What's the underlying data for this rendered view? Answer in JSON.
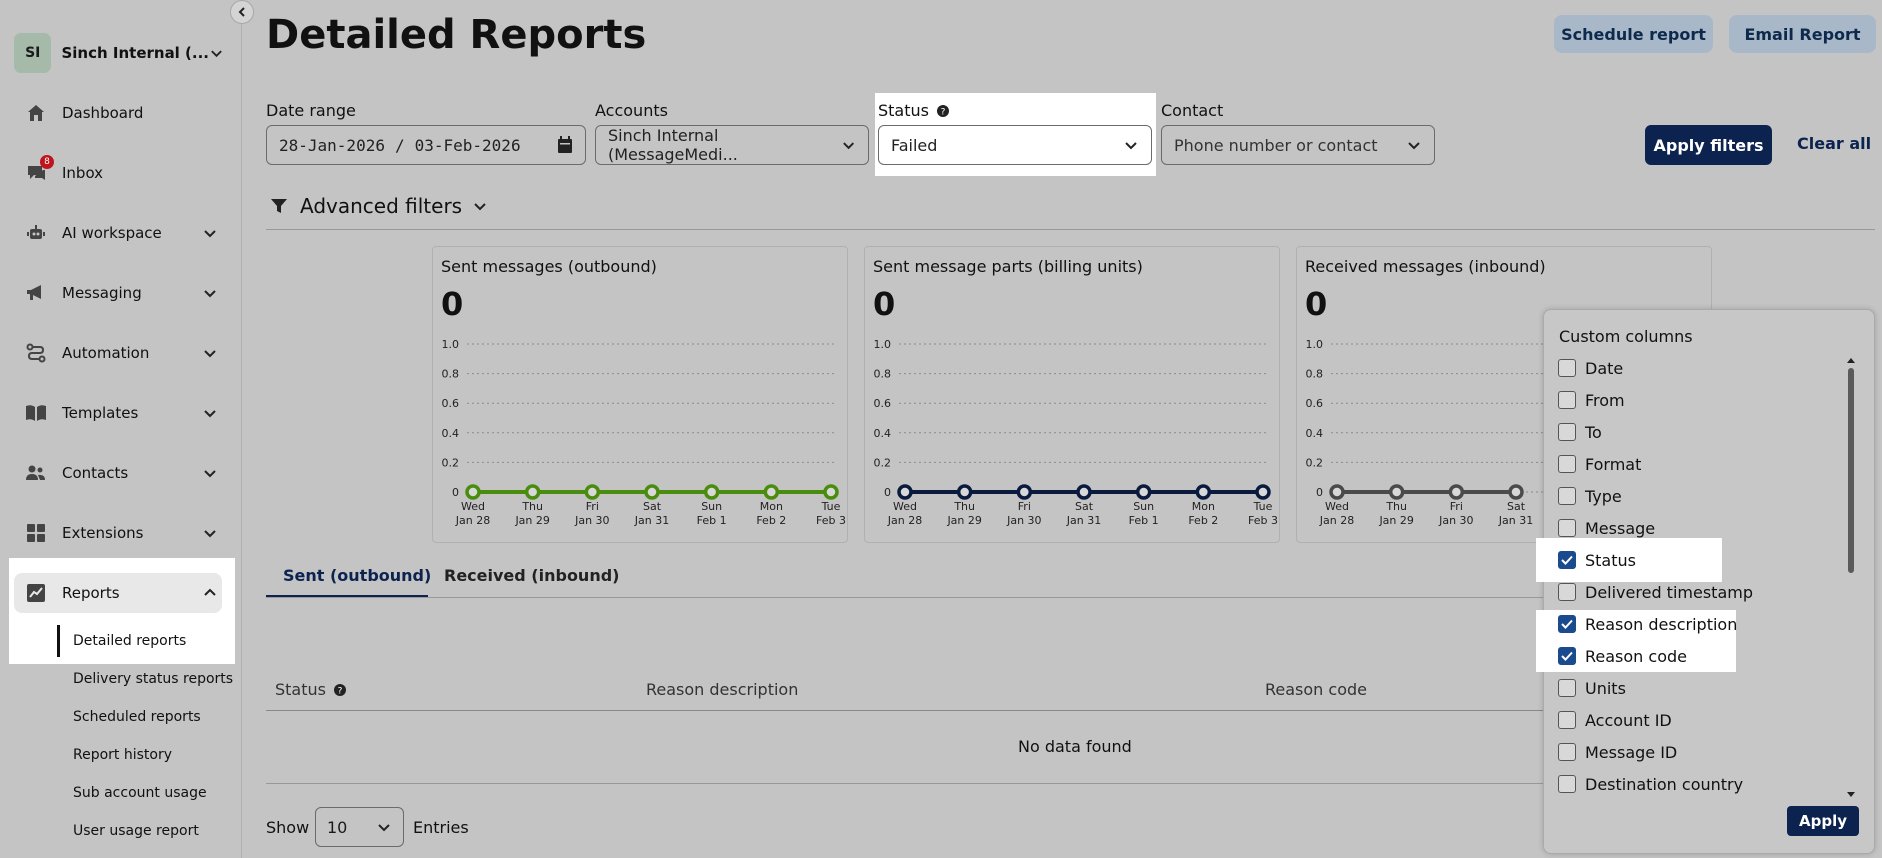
{
  "sidebar": {
    "account_initials": "SI",
    "account_name": "Sinch Internal (...",
    "items": [
      {
        "label": "Dashboard",
        "icon": "home-icon"
      },
      {
        "label": "Inbox",
        "icon": "inbox-icon",
        "badge": "8"
      },
      {
        "label": "AI workspace",
        "icon": "robot-icon"
      },
      {
        "label": "Messaging",
        "icon": "megaphone-icon"
      },
      {
        "label": "Automation",
        "icon": "flow-icon"
      },
      {
        "label": "Templates",
        "icon": "book-icon"
      },
      {
        "label": "Contacts",
        "icon": "contacts-icon"
      },
      {
        "label": "Extensions",
        "icon": "grid-icon"
      },
      {
        "label": "Reports",
        "icon": "chart-icon"
      }
    ],
    "report_subitems": [
      "Detailed reports",
      "Delivery status reports",
      "Scheduled reports",
      "Report history",
      "Sub account usage",
      "User usage report"
    ]
  },
  "header": {
    "title": "Detailed Reports",
    "schedule_report": "Schedule report",
    "email_report": "Email Report"
  },
  "filters": {
    "date_range_label": "Date range",
    "date_from": "28-Jan-2026",
    "date_sep": "/",
    "date_to": "03-Feb-2026",
    "accounts_label": "Accounts",
    "accounts_value": "Sinch Internal (MessageMedi...",
    "status_label": "Status",
    "status_value": "Failed",
    "contact_label": "Contact",
    "contact_placeholder": "Phone number or contact",
    "apply_filters": "Apply filters",
    "clear_all": "Clear all",
    "advanced_filters": "Advanced filters"
  },
  "charts": [
    {
      "title": "Sent messages (outbound)",
      "total": "0",
      "color": "#4a8c0e"
    },
    {
      "title": "Sent message parts (billing units)",
      "total": "0",
      "color": "#0a1a3f"
    },
    {
      "title": "Received messages (inbound)",
      "total": "0",
      "color": "#4a4a4a"
    }
  ],
  "chart_data": [
    {
      "type": "line",
      "title": "Sent messages (outbound)",
      "x": [
        "Wed Jan 28",
        "Thu Jan 29",
        "Fri Jan 30",
        "Sat Jan 31",
        "Sun Feb 1",
        "Mon Feb 2",
        "Tue Feb 3"
      ],
      "series": [
        {
          "values": [
            0,
            0,
            0,
            0,
            0,
            0,
            0
          ]
        }
      ],
      "ylim": [
        0,
        1.0
      ],
      "yticks": [
        "0",
        "0.2",
        "0.4",
        "0.6",
        "0.8",
        "1.0"
      ],
      "grid": true
    },
    {
      "type": "line",
      "title": "Sent message parts (billing units)",
      "x": [
        "Wed Jan 28",
        "Thu Jan 29",
        "Fri Jan 30",
        "Sat Jan 31",
        "Sun Feb 1",
        "Mon Feb 2",
        "Tue Feb 3"
      ],
      "series": [
        {
          "values": [
            0,
            0,
            0,
            0,
            0,
            0,
            0
          ]
        }
      ],
      "ylim": [
        0,
        1.0
      ],
      "yticks": [
        "0",
        "0.2",
        "0.4",
        "0.6",
        "0.8",
        "1.0"
      ],
      "grid": true
    },
    {
      "type": "line",
      "title": "Received messages (inbound)",
      "x": [
        "Wed Jan 28",
        "Thu Jan 29",
        "Fri Jan 30",
        "Sat Jan 31"
      ],
      "series": [
        {
          "values": [
            0,
            0,
            0,
            0
          ]
        }
      ],
      "ylim": [
        0,
        1.0
      ],
      "yticks": [
        "0",
        "0.2",
        "0.4",
        "0.6",
        "0.8",
        "1.0"
      ],
      "grid": true
    }
  ],
  "tabs": {
    "sent": "Sent (outbound)",
    "received": "Received (inbound)"
  },
  "table": {
    "headers": [
      "Status",
      "Reason description",
      "Reason code"
    ],
    "empty": "No data found",
    "show": "Show",
    "entries_value": "10",
    "entries": "Entries"
  },
  "custom_columns": {
    "title": "Custom columns",
    "items": [
      {
        "label": "Date",
        "checked": false
      },
      {
        "label": "From",
        "checked": false
      },
      {
        "label": "To",
        "checked": false
      },
      {
        "label": "Format",
        "checked": false
      },
      {
        "label": "Type",
        "checked": false
      },
      {
        "label": "Message",
        "checked": false
      },
      {
        "label": "Status",
        "checked": true
      },
      {
        "label": "Delivered timestamp",
        "checked": false
      },
      {
        "label": "Reason description",
        "checked": true
      },
      {
        "label": "Reason code",
        "checked": true
      },
      {
        "label": "Units",
        "checked": false
      },
      {
        "label": "Account ID",
        "checked": false
      },
      {
        "label": "Message ID",
        "checked": false
      },
      {
        "label": "Destination country",
        "checked": false
      }
    ],
    "apply": "Apply"
  }
}
